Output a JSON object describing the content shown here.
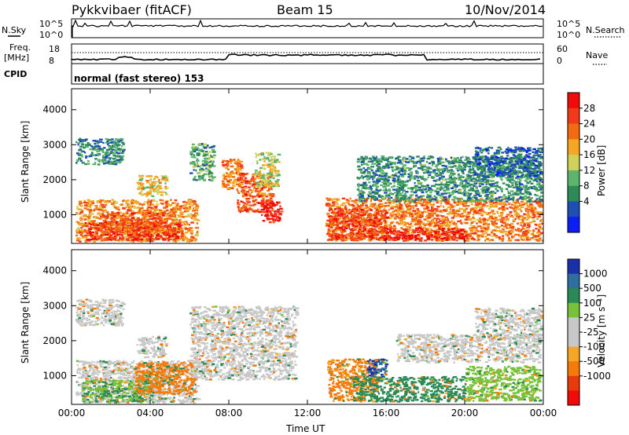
{
  "header": {
    "station": "Pykkvibaer (fitACF)",
    "beam": "Beam 15",
    "date": "10/Nov/2014"
  },
  "info_panels": {
    "nsky_label": "N.Sky",
    "nsearch_label": "N.Search",
    "noise_ticks": [
      "10^5",
      "10^0"
    ],
    "freq_label_line1": "Freq.",
    "freq_label_line2": "[MHz]",
    "freq_ticks": [
      "18",
      "8"
    ],
    "nave_label": "Nave",
    "nave_ticks": [
      "60",
      "0"
    ],
    "cpid_label": "CPID",
    "cpid_value": "normal (fast stereo) 153"
  },
  "colors": {
    "power_scale": [
      "#0a1ef5",
      "#1e4fb4",
      "#2e8b57",
      "#5db46c",
      "#cfd15a",
      "#f5a623",
      "#f26a11",
      "#f23a1a",
      "#f20a0a"
    ],
    "velocity_scale": [
      "#1a2fa8",
      "#2e6fa0",
      "#2a8a55",
      "#78c23a",
      "#c8c8c8",
      "#c8c8c8",
      "#f5a623",
      "#f57a0a",
      "#e83a0a",
      "#f20a0a"
    ]
  },
  "chart_data": [
    {
      "type": "heatmap",
      "name": "power",
      "ylabel": "Slant Range [km]",
      "xlabel": "Time UT",
      "ylim": [
        180,
        4600
      ],
      "yticks": [
        1000,
        2000,
        3000,
        4000
      ],
      "xticks": [
        "00:00",
        "04:00",
        "08:00",
        "12:00",
        "16:00",
        "20:00",
        "00:00"
      ],
      "colorbar": {
        "label": "Power [dB]",
        "ticks": [
          28,
          24,
          20,
          16,
          12,
          8,
          4
        ],
        "range": [
          0,
          30
        ]
      },
      "regions": [
        {
          "t0": 0.2,
          "t1": 2.6,
          "r0": 2450,
          "r1": 3200,
          "level": 8
        },
        {
          "t0": 0.2,
          "t1": 6.4,
          "r0": 250,
          "r1": 1450,
          "level": 20
        },
        {
          "t0": 0.6,
          "t1": 5.6,
          "r0": 300,
          "r1": 800,
          "level": 26
        },
        {
          "t0": 1.5,
          "t1": 5.0,
          "r0": 500,
          "r1": 1100,
          "level": 23
        },
        {
          "t0": 3.3,
          "t1": 4.8,
          "r0": 1550,
          "r1": 2150,
          "level": 17
        },
        {
          "t0": 6.0,
          "t1": 7.2,
          "r0": 2000,
          "r1": 3050,
          "level": 10
        },
        {
          "t0": 7.6,
          "t1": 8.6,
          "r0": 1700,
          "r1": 2600,
          "level": 21
        },
        {
          "t0": 8.4,
          "t1": 10.2,
          "r0": 1100,
          "r1": 2200,
          "level": 23
        },
        {
          "t0": 9.6,
          "t1": 10.6,
          "r0": 800,
          "r1": 1400,
          "level": 27
        },
        {
          "t0": 9.3,
          "t1": 10.5,
          "r0": 1800,
          "r1": 2800,
          "level": 15
        },
        {
          "t0": 12.9,
          "t1": 23.9,
          "r0": 280,
          "r1": 1500,
          "level": 21
        },
        {
          "t0": 13.0,
          "t1": 16.0,
          "r0": 300,
          "r1": 1200,
          "level": 25
        },
        {
          "t0": 15.8,
          "t1": 20.0,
          "r0": 300,
          "r1": 650,
          "level": 27
        },
        {
          "t0": 14.5,
          "t1": 23.9,
          "r0": 1400,
          "r1": 2700,
          "level": 9
        },
        {
          "t0": 20.5,
          "t1": 23.9,
          "r0": 2100,
          "r1": 2950,
          "level": 6
        }
      ]
    },
    {
      "type": "heatmap",
      "name": "velocity",
      "ylabel": "Slant Range [km]",
      "xlabel": "Time UT",
      "ylim": [
        180,
        4600
      ],
      "yticks": [
        1000,
        2000,
        3000,
        4000
      ],
      "xticks": [
        "00:00",
        "04:00",
        "08:00",
        "12:00",
        "16:00",
        "20:00",
        "00:00"
      ],
      "colorbar": {
        "label": "Velocity [m s⁻¹]",
        "ticks": [
          1000,
          500,
          100,
          25,
          -25,
          -100,
          -500,
          -1000
        ]
      },
      "regions": [
        {
          "t0": 0.2,
          "t1": 2.6,
          "r0": 2450,
          "r1": 3200,
          "level": 0
        },
        {
          "t0": 0.2,
          "t1": 6.4,
          "r0": 250,
          "r1": 1450,
          "level": 0
        },
        {
          "t0": 0.5,
          "t1": 4.0,
          "r0": 250,
          "r1": 900,
          "level": 90
        },
        {
          "t0": 3.2,
          "t1": 6.2,
          "r0": 500,
          "r1": 1400,
          "level": -250
        },
        {
          "t0": 3.3,
          "t1": 4.8,
          "r0": 1550,
          "r1": 2150,
          "level": 0
        },
        {
          "t0": 6.0,
          "t1": 11.4,
          "r0": 900,
          "r1": 3000,
          "level": 0
        },
        {
          "t0": 13.0,
          "t1": 15.5,
          "r0": 300,
          "r1": 1500,
          "level": -150
        },
        {
          "t0": 14.3,
          "t1": 20.0,
          "r0": 280,
          "r1": 1000,
          "level": 300
        },
        {
          "t0": 15.0,
          "t1": 16.0,
          "r0": 1000,
          "r1": 1500,
          "level": 1000
        },
        {
          "t0": 16.5,
          "t1": 23.8,
          "r0": 1400,
          "r1": 2200,
          "level": 0
        },
        {
          "t0": 20.0,
          "t1": 23.8,
          "r0": 300,
          "r1": 1300,
          "level": 60
        },
        {
          "t0": 20.5,
          "t1": 23.9,
          "r0": 2100,
          "r1": 2950,
          "level": 0
        }
      ]
    }
  ]
}
